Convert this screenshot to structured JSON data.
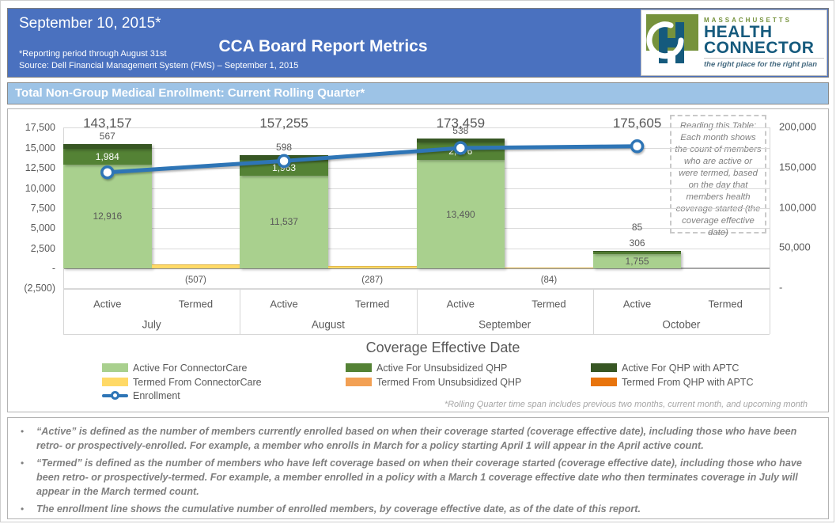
{
  "header": {
    "date_title": "September 10, 2015*",
    "main_title": "CCA Board Report Metrics",
    "footnote1": "*Reporting period through August 31st",
    "footnote2": "Source: Dell Financial Management System (FMS) – September 1, 2015",
    "logo": {
      "region": "MASSACHUSETTS",
      "name_line1": "HEALTH",
      "name_line2": "CONNECTOR",
      "tagline": "the right place for the right plan"
    }
  },
  "section_title": "Total Non-Group Medical Enrollment: Current Rolling Quarter*",
  "colors": {
    "header_blue": "#4A71BF",
    "section_bar_blue": "#9DC3E6",
    "active_connectorcare": "#A9D08E",
    "active_unsubsidized_qhp": "#548235",
    "active_qhp_aptc": "#375623",
    "termed_connectorcare": "#FFD966",
    "termed_unsubsidized_qhp": "#F2A054",
    "termed_qhp_aptc": "#E8740C",
    "enrollment_line": "#2E75B6",
    "axis_text": "#595959"
  },
  "chart_data": {
    "type": "bar",
    "combo": "stacked-column with line overlay",
    "categories": [
      "July",
      "August",
      "September",
      "October"
    ],
    "sub_categories": [
      "Active",
      "Termed"
    ],
    "series": [
      {
        "name": "Active For ConnectorCare",
        "role": "active-stack",
        "color": "#A9D08E",
        "values": [
          12916,
          11537,
          13490,
          1755
        ]
      },
      {
        "name": "Active For Unsubsidized QHP",
        "role": "active-stack",
        "color": "#548235",
        "values": [
          1984,
          1963,
          2176,
          306
        ]
      },
      {
        "name": "Active For QHP with APTC",
        "role": "active-stack",
        "color": "#375623",
        "values": [
          567,
          598,
          538,
          85
        ]
      },
      {
        "name": "Termed From ConnectorCare",
        "role": "termed",
        "color": "#FFD966",
        "values": [
          -507,
          -287,
          -84,
          0
        ]
      },
      {
        "name": "Enrollment",
        "role": "line",
        "color": "#2E75B6",
        "values": [
          143157,
          157255,
          173459,
          175605
        ]
      }
    ],
    "termed_labels": [
      "(507)",
      "(287)",
      "(84)",
      ""
    ],
    "left_axis": {
      "min": -2500,
      "max": 17500,
      "step": 2500,
      "ticks": [
        "17,500",
        "15,000",
        "12,500",
        "10,000",
        "7,500",
        "5,000",
        "2,500",
        "-",
        "(2,500)"
      ]
    },
    "right_axis": {
      "min": 0,
      "max": 200000,
      "step": 50000,
      "ticks": [
        "200,000",
        "150,000",
        "100,000",
        "50,000",
        "-"
      ]
    },
    "xlabel": "Coverage Effective Date",
    "grid": true,
    "legend_position": "bottom",
    "note_box": "Reading this Table: Each month shows the count of members who are active or were termed, based on the day that members health coverage started (the coverage effective date)",
    "footnote": "*Rolling Quarter time span includes previous two months, current month, and upcoming month"
  },
  "legend": {
    "columns": [
      [
        {
          "type": "box",
          "swatch": "#A9D08E",
          "label": "Active For ConnectorCare"
        },
        {
          "type": "box",
          "swatch": "#FFD966",
          "label": "Termed From ConnectorCare"
        },
        {
          "type": "line-marker",
          "swatch": "#2E75B6",
          "label": "Enrollment"
        }
      ],
      [
        {
          "type": "box",
          "swatch": "#548235",
          "label": "Active For Unsubsidized QHP"
        },
        {
          "type": "box",
          "swatch": "#F2A054",
          "label": "Termed From Unsubsidized QHP"
        }
      ],
      [
        {
          "type": "box",
          "swatch": "#375623",
          "label": "Active For QHP with APTC"
        },
        {
          "type": "box",
          "swatch": "#E8740C",
          "label": "Termed From QHP with APTC"
        }
      ]
    ]
  },
  "notes": [
    "“Active” is defined as the number of members currently enrolled based on when their coverage started (coverage effective date), including those who have been retro- or prospectively-enrolled.  For example, a member who enrolls in March for a policy starting April 1 will appear in the April active count.",
    "“Termed” is defined as the number of members who have left coverage based on when their coverage started (coverage effective date), including those who have been retro- or prospectively-termed.  For example, a member enrolled in a policy with a March 1 coverage effective date who then terminates coverage in July will appear in the March termed count.",
    "The enrollment line shows the cumulative number of enrolled members, by coverage effective date, as of the date of this report."
  ]
}
